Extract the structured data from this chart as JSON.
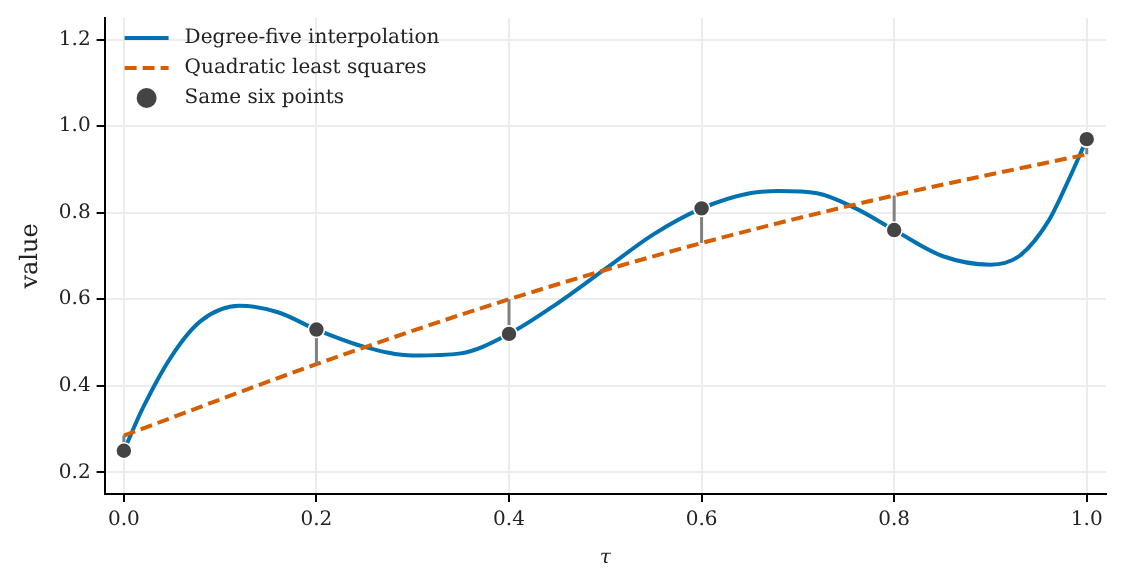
{
  "chart_data": {
    "type": "line",
    "xlabel": "τ",
    "ylabel": "value",
    "xlim": [
      -0.02,
      1.02
    ],
    "ylim": [
      0.15,
      1.25
    ],
    "xticks": [
      {
        "value": 0,
        "label": "0.0"
      },
      0.2,
      0.4,
      0.6,
      0.8,
      {
        "value": 1,
        "label": "1.0"
      }
    ],
    "yticks": [
      0.2,
      0.4,
      0.6,
      0.8,
      {
        "value": 1,
        "label": "1.0"
      },
      1.2
    ],
    "grid": true,
    "legend": "top left",
    "series": [
      {
        "name": "Degree-five interpolation",
        "type": "line",
        "color": "#0072b2",
        "line_style": "solid",
        "marker": "none",
        "x": [
          0,
          0.02,
          0.05,
          0.08,
          0.12,
          0.16,
          0.2,
          0.25,
          0.3,
          0.35,
          0.4,
          0.45,
          0.5,
          0.55,
          0.6,
          0.65,
          0.68,
          0.72,
          0.76,
          0.8,
          0.85,
          0.9,
          0.93,
          0.96,
          0.98,
          1
        ],
        "values": [
          0.25,
          0.35,
          0.47,
          0.55,
          0.585,
          0.57,
          0.53,
          0.49,
          0.47,
          0.475,
          0.52,
          0.59,
          0.67,
          0.75,
          0.81,
          0.845,
          0.85,
          0.845,
          0.81,
          0.76,
          0.7,
          0.68,
          0.7,
          0.78,
          0.87,
          0.97
        ]
      },
      {
        "name": "Quadratic least squares",
        "type": "line",
        "color": "#d55e00",
        "line_style": "dashed",
        "marker": "none",
        "x": [
          0,
          0.2,
          0.4,
          0.6,
          0.8,
          1
        ],
        "values": [
          0.285,
          0.45,
          0.6,
          0.73,
          0.84,
          0.935
        ]
      },
      {
        "type": "line",
        "color": "#808080",
        "line_style": "solid",
        "marker": "none",
        "x": [
          0,
          0,
          null,
          0.2,
          0.2,
          null,
          0.4,
          0.4,
          null,
          0.6,
          0.6,
          null,
          0.8,
          0.8,
          null,
          1,
          1
        ],
        "values": [
          0.25,
          0.285,
          null,
          0.53,
          0.45,
          null,
          0.52,
          0.6,
          null,
          0.81,
          0.73,
          null,
          0.76,
          0.84,
          null,
          0.97,
          0.935
        ]
      },
      {
        "name": "Same six points",
        "type": "scatter",
        "color": "#444444",
        "marker": "circle",
        "x": [
          0,
          0.2,
          0.4,
          0.6,
          0.8,
          1
        ],
        "values": [
          0.25,
          0.53,
          0.52,
          0.81,
          0.76,
          0.97
        ]
      }
    ]
  }
}
